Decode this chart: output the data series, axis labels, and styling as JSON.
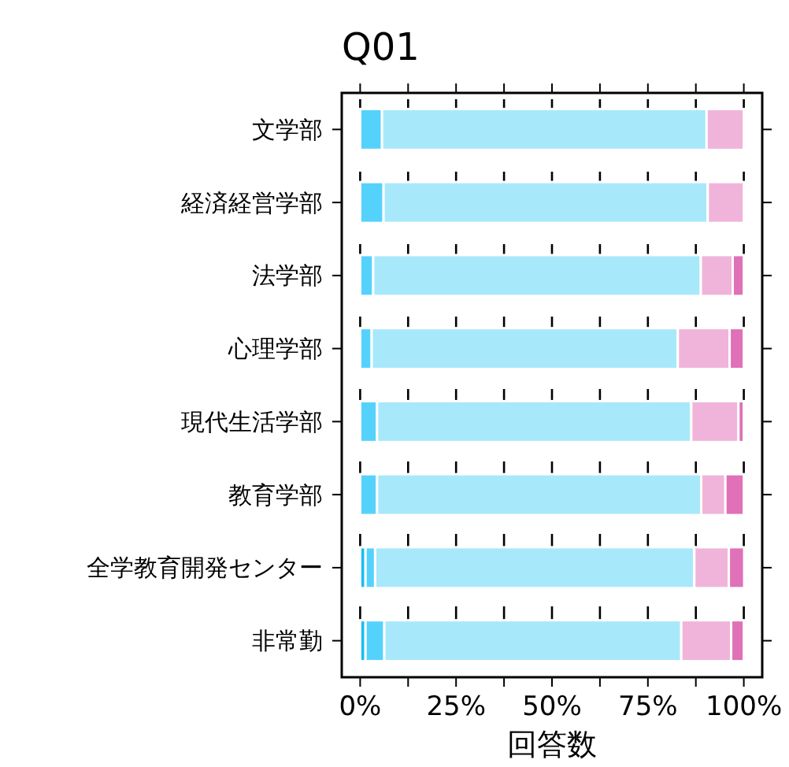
{
  "chart_data": {
    "type": "bar",
    "orientation": "horizontal",
    "stacked": true,
    "title": "Q01",
    "xlabel": "回答数",
    "categories": [
      "文学部",
      "経済経営学部",
      "法学部",
      "心理学部",
      "現代生活学部",
      "教育学部",
      "全学教育開発センター",
      "非常勤"
    ],
    "series": [
      {
        "color": "#18bdf5",
        "values": [
          0,
          0,
          0,
          0,
          0,
          0,
          1.4,
          1.4
        ]
      },
      {
        "color": "#55d2fc",
        "values": [
          5.7,
          6.1,
          3.4,
          3.0,
          4.4,
          4.4,
          2.5,
          4.9
        ]
      },
      {
        "color": "#a8e8fb",
        "values": [
          84.6,
          84.5,
          85.4,
          79.8,
          81.9,
          84.5,
          83.2,
          77.4
        ]
      },
      {
        "color": "#f0b4da",
        "values": [
          9.7,
          9.4,
          8.3,
          13.5,
          12.3,
          6.3,
          9.0,
          13.0
        ]
      },
      {
        "color": "#e070b8",
        "values": [
          0,
          0,
          2.9,
          3.7,
          1.4,
          4.8,
          4.0,
          3.3
        ]
      }
    ],
    "xlim": [
      -4.8,
      104.8
    ],
    "xticks": [
      {
        "value": 0,
        "label": "0%"
      },
      {
        "value": 12.5,
        "label": null
      },
      {
        "value": 25,
        "label": "25%"
      },
      {
        "value": 37.5,
        "label": null
      },
      {
        "value": 50,
        "label": "50%"
      },
      {
        "value": 62.5,
        "label": null
      },
      {
        "value": 75,
        "label": "75%"
      },
      {
        "value": 87.5,
        "label": null
      },
      {
        "value": 100,
        "label": "100%"
      }
    ],
    "grid": "x"
  }
}
